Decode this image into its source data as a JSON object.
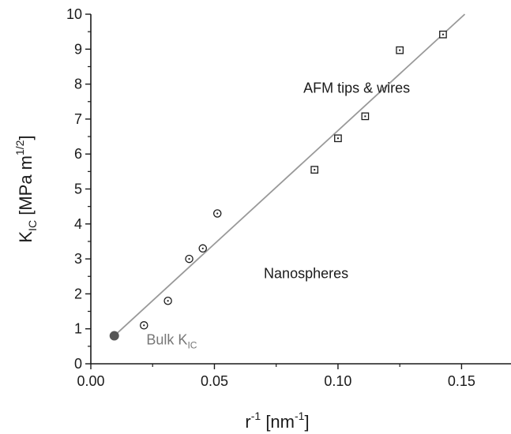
{
  "chart_data": {
    "type": "scatter",
    "xlabel": {
      "base": "r",
      "sup": "-1",
      "unit_open": " [nm",
      "unit_sup": "-1",
      "unit_close": "]"
    },
    "ylabel": {
      "base": "K",
      "sub": "IC",
      "unit_open": " [MPa m",
      "unit_sup": "1/2",
      "unit_close": "]"
    },
    "xlim": [
      0.0,
      0.17
    ],
    "ylim": [
      0,
      10
    ],
    "x_ticks": [
      0.0,
      0.05,
      0.1,
      0.15
    ],
    "x_tick_labels": [
      "0.00",
      "0.05",
      "0.10",
      "0.15"
    ],
    "y_ticks": [
      0,
      1,
      2,
      3,
      4,
      5,
      6,
      7,
      8,
      9,
      10
    ],
    "y_tick_labels": [
      "0",
      "1",
      "2",
      "3",
      "4",
      "5",
      "6",
      "7",
      "8",
      "9",
      "10"
    ],
    "grid": false,
    "series": [
      {
        "marker": "circle-dot",
        "points": [
          {
            "x": 0.0215,
            "y": 1.1
          },
          {
            "x": 0.0312,
            "y": 1.8
          },
          {
            "x": 0.0398,
            "y": 3.0
          },
          {
            "x": 0.0453,
            "y": 3.3
          },
          {
            "x": 0.0512,
            "y": 4.3
          }
        ]
      },
      {
        "marker": "square-dot",
        "points": [
          {
            "x": 0.0905,
            "y": 5.55
          },
          {
            "x": 0.1,
            "y": 6.45
          },
          {
            "x": 0.111,
            "y": 7.08
          },
          {
            "x": 0.125,
            "y": 8.97
          },
          {
            "x": 0.1425,
            "y": 9.42
          }
        ]
      },
      {
        "marker": "filled-circle",
        "color": "#555555",
        "points": [
          {
            "x": 0.0095,
            "y": 0.8
          }
        ]
      }
    ],
    "fit_line": {
      "color": "#999999",
      "points": [
        {
          "x": 0.0095,
          "y": 0.8
        },
        {
          "x": 0.1513,
          "y": 10.0
        }
      ]
    },
    "annotations": {
      "afm": {
        "text": "AFM tips & wires",
        "x": 0.086,
        "y": 7.75
      },
      "nano": {
        "text": "Nanospheres",
        "x": 0.07,
        "y": 2.45
      },
      "bulk": {
        "base": "Bulk K",
        "sub": "IC",
        "x": 0.0225,
        "y": 0.55,
        "color": "#777777"
      }
    },
    "colors": {
      "axis": "#1a1a1a",
      "marker": "#1a1a1a"
    }
  }
}
